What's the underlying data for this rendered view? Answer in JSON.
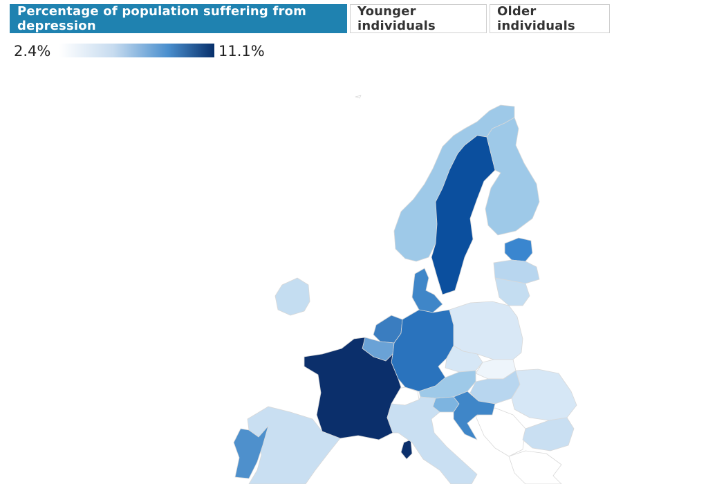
{
  "tabs": [
    {
      "label": "Percentage of population suffering from depression",
      "active": true
    },
    {
      "label": "Younger individuals",
      "active": false
    },
    {
      "label": "Older individuals",
      "active": false
    }
  ],
  "legend": {
    "min": "2.4%",
    "max": "11.1%"
  },
  "colors": {
    "tab_active": "#1f82b0",
    "scale_low": "#ffffff",
    "scale_high": "#08306b"
  },
  "map": {
    "regions": [
      {
        "name": "France",
        "color": "#0b2f6b"
      },
      {
        "name": "Corsica",
        "color": "#0b2f6b"
      },
      {
        "name": "Sweden",
        "color": "#0b4f9e"
      },
      {
        "name": "Germany",
        "color": "#2a73bd"
      },
      {
        "name": "Netherlands",
        "color": "#3a7dc0"
      },
      {
        "name": "Belgium",
        "color": "#6aa2d6"
      },
      {
        "name": "Denmark",
        "color": "#3f86c8"
      },
      {
        "name": "Estonia",
        "color": "#3a86cf"
      },
      {
        "name": "Portugal",
        "color": "#4e90cc"
      },
      {
        "name": "Croatia",
        "color": "#3f86c8"
      },
      {
        "name": "Norway",
        "color": "#9ec9e8"
      },
      {
        "name": "Finland",
        "color": "#9ec9e8"
      },
      {
        "name": "Austria",
        "color": "#9ec9e8"
      },
      {
        "name": "Slovenia",
        "color": "#7db4e0"
      },
      {
        "name": "Latvia",
        "color": "#b8d6ef"
      },
      {
        "name": "Lithuania",
        "color": "#c4ddf1"
      },
      {
        "name": "Ireland",
        "color": "#c4ddf1"
      },
      {
        "name": "Spain",
        "color": "#c9dff2"
      },
      {
        "name": "Italy",
        "color": "#c9dff2"
      },
      {
        "name": "Hungary",
        "color": "#b8d6ef"
      },
      {
        "name": "Romania",
        "color": "#d6e7f6"
      },
      {
        "name": "Poland",
        "color": "#d9e8f6"
      },
      {
        "name": "Czechia",
        "color": "#d6e7f6"
      },
      {
        "name": "Slovakia",
        "color": "#eef5fb"
      },
      {
        "name": "Bulgaria",
        "color": "#c9dff2"
      },
      {
        "name": "Greece",
        "color": "#ffffff"
      },
      {
        "name": "Switzerland",
        "color": "#ffffff"
      },
      {
        "name": "Balkans",
        "color": "#ffffff"
      }
    ]
  }
}
